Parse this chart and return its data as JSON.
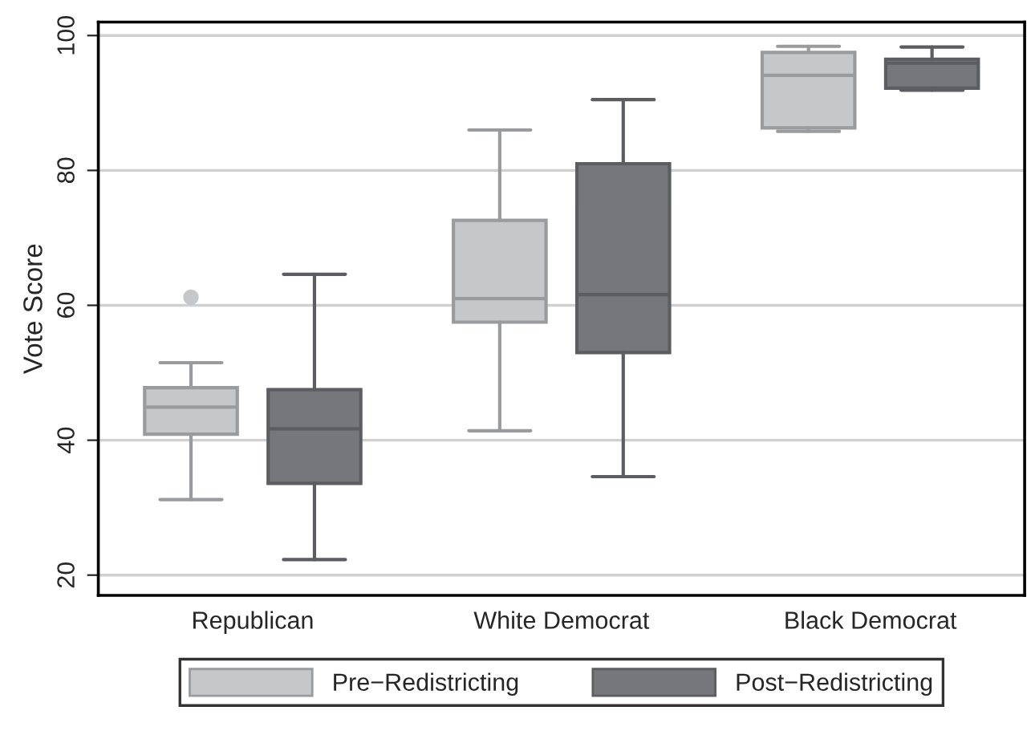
{
  "chart_data": {
    "type": "box",
    "ylabel": "Vote Score",
    "categories": [
      "Republican",
      "White Democrat",
      "Black Democrat"
    ],
    "ylim": [
      17,
      102
    ],
    "yticks": [
      20,
      40,
      60,
      80,
      100
    ],
    "grid": "y",
    "legend": "bottom",
    "series": [
      {
        "name": "Pre−Redistricting",
        "color": "#c6c7c9",
        "boxes": [
          {
            "low": 31.2,
            "q1": 40.9,
            "median": 44.9,
            "q3": 47.8,
            "high": 51.5,
            "outliers": [
              61.2
            ]
          },
          {
            "low": 41.4,
            "q1": 57.5,
            "median": 61.0,
            "q3": 72.6,
            "high": 86.0
          },
          {
            "low": 85.8,
            "q1": 86.3,
            "median": 94.1,
            "q3": 97.5,
            "high": 98.4
          }
        ]
      },
      {
        "name": "Post−Redistricting",
        "color": "#76777b",
        "boxes": [
          {
            "low": 22.3,
            "q1": 33.6,
            "median": 41.7,
            "q3": 47.5,
            "high": 64.6
          },
          {
            "low": 34.6,
            "q1": 53.0,
            "median": 61.6,
            "q3": 81.0,
            "high": 90.5
          },
          {
            "low": 91.9,
            "q1": 92.2,
            "median": 95.9,
            "q3": 96.5,
            "high": 98.3
          }
        ]
      }
    ]
  }
}
